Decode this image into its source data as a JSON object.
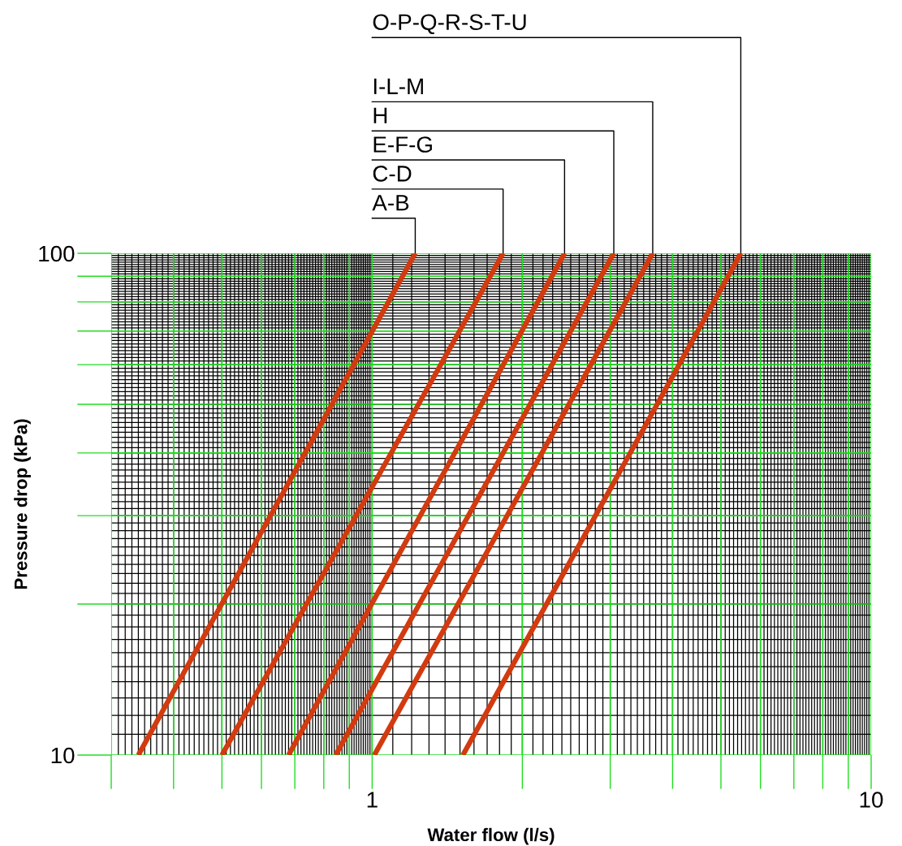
{
  "chart_data": {
    "type": "line",
    "xlabel": "Water flow (l/s)",
    "ylabel": "Pressure drop (kPa)",
    "log": "xy",
    "grid": true,
    "marker": "none",
    "line_style": "solid",
    "legend": false,
    "xlim": [
      0.3,
      10
    ],
    "ylim": [
      10,
      100
    ],
    "xticks": [
      {
        "value": 0.3,
        "label": null
      },
      {
        "value": 0.4,
        "label": null
      },
      {
        "value": 0.5,
        "label": null
      },
      {
        "value": 0.6,
        "label": null
      },
      {
        "value": 0.7,
        "label": null
      },
      {
        "value": 0.8,
        "label": null
      },
      {
        "value": 0.9,
        "label": null
      },
      1,
      {
        "value": 2,
        "label": null
      },
      {
        "value": 3,
        "label": null
      },
      {
        "value": 4,
        "label": null
      },
      {
        "value": 5,
        "label": null
      },
      {
        "value": 6,
        "label": null
      },
      {
        "value": 7,
        "label": null
      },
      {
        "value": 8,
        "label": null
      },
      {
        "value": 9,
        "label": null
      },
      10
    ],
    "yticks": [
      10,
      {
        "value": 20,
        "label": null
      },
      {
        "value": 30,
        "label": null
      },
      {
        "value": 40,
        "label": null
      },
      {
        "value": 50,
        "label": null
      },
      {
        "value": 60,
        "label": null
      },
      {
        "value": 70,
        "label": null
      },
      {
        "value": 80,
        "label": null
      },
      {
        "value": 90,
        "label": null
      },
      100
    ],
    "series": [
      {
        "name": "A-B",
        "color": "#d23a0f",
        "x": [
          0.34,
          1.22
        ],
        "values": [
          10,
          100
        ]
      },
      {
        "name": "C-D",
        "color": "#d23a0f",
        "x": [
          0.5,
          1.83
        ],
        "values": [
          10,
          100
        ]
      },
      {
        "name": "E-F-G",
        "color": "#d23a0f",
        "x": [
          0.68,
          2.43
        ],
        "values": [
          10,
          100
        ]
      },
      {
        "name": "H",
        "color": "#d23a0f",
        "x": [
          0.845,
          3.05
        ],
        "values": [
          10,
          100
        ]
      },
      {
        "name": "I-L-M",
        "color": "#d23a0f",
        "x": [
          1.01,
          3.65
        ],
        "values": [
          10,
          100
        ]
      },
      {
        "name": "O-P-Q-R-S-T-U",
        "color": "#d23a0f",
        "x": [
          1.52,
          5.48
        ],
        "values": [
          10,
          100
        ]
      }
    ]
  }
}
